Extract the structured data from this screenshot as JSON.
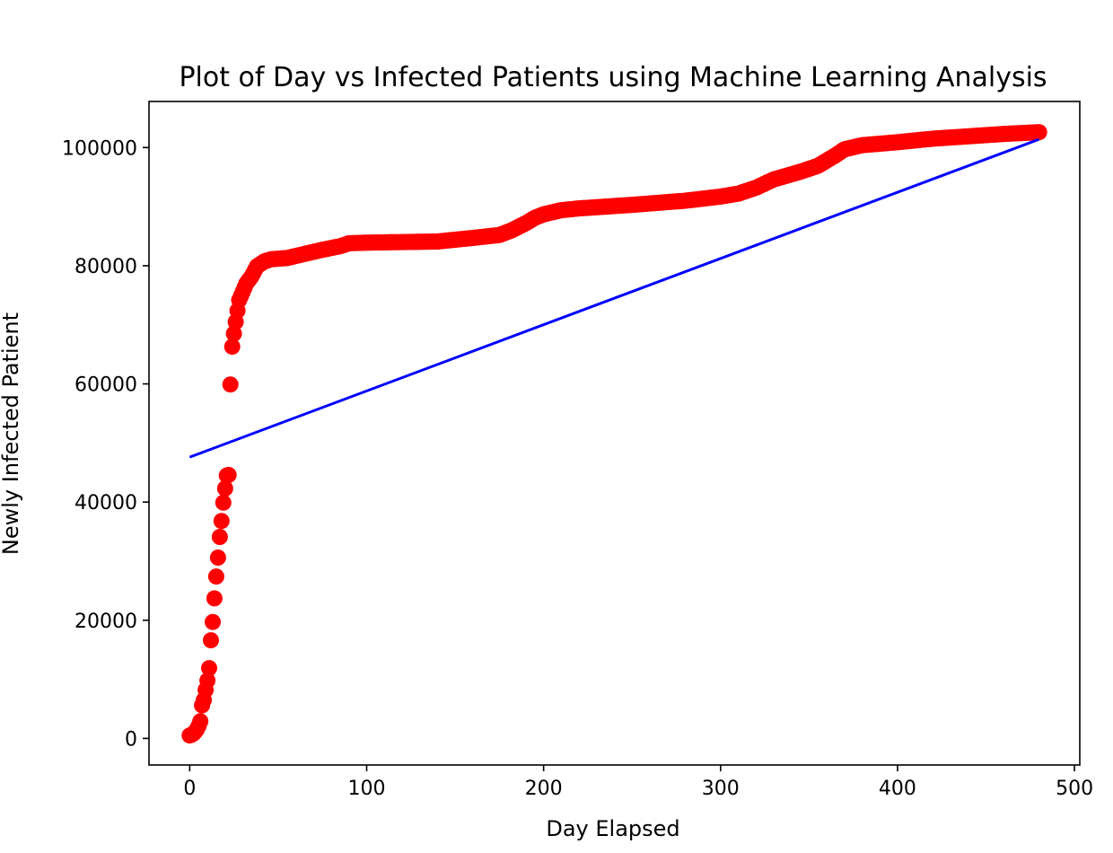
{
  "chart_data": {
    "type": "scatter",
    "title": "Plot of Day vs Infected Patients using Machine Learning Analysis",
    "xlabel": "Day Elapsed",
    "ylabel": "Newly Infected Patient",
    "xlim": [
      -23,
      503
    ],
    "ylim": [
      -4500,
      107800
    ],
    "xticks": [
      0,
      100,
      200,
      300,
      400,
      500
    ],
    "yticks": [
      0,
      20000,
      40000,
      60000,
      80000,
      100000
    ],
    "grid": false,
    "colors": {
      "points": "#ff0000",
      "fit_line": "#0000ff"
    },
    "series": [
      {
        "kind": "scatter",
        "color": "#ff0000",
        "anchors": [
          [
            0,
            500
          ],
          [
            1,
            600
          ],
          [
            2,
            800
          ],
          [
            3,
            1100
          ],
          [
            4,
            1500
          ],
          [
            5,
            2100
          ],
          [
            6,
            2900
          ],
          [
            7,
            5600
          ],
          [
            8,
            6500
          ],
          [
            9,
            8200
          ],
          [
            10,
            9800
          ],
          [
            11,
            11900
          ],
          [
            12,
            16600
          ],
          [
            13,
            19700
          ],
          [
            14,
            23700
          ],
          [
            15,
            27400
          ],
          [
            16,
            30600
          ],
          [
            17,
            34100
          ],
          [
            18,
            36800
          ],
          [
            19,
            39900
          ],
          [
            20,
            42300
          ],
          [
            21,
            44500
          ],
          [
            22,
            44600
          ],
          [
            23,
            59900
          ],
          [
            24,
            66300
          ],
          [
            25,
            68500
          ],
          [
            26,
            70500
          ],
          [
            27,
            72400
          ],
          [
            28,
            74200
          ],
          [
            30,
            75600
          ],
          [
            32,
            77000
          ],
          [
            35,
            78200
          ],
          [
            38,
            79900
          ],
          [
            42,
            80700
          ],
          [
            46,
            81100
          ],
          [
            55,
            81300
          ],
          [
            65,
            82000
          ],
          [
            75,
            82700
          ],
          [
            85,
            83300
          ],
          [
            90,
            83800
          ],
          [
            100,
            83900
          ],
          [
            120,
            84000
          ],
          [
            140,
            84100
          ],
          [
            160,
            84700
          ],
          [
            175,
            85200
          ],
          [
            182,
            86000
          ],
          [
            190,
            87200
          ],
          [
            195,
            88100
          ],
          [
            200,
            88700
          ],
          [
            210,
            89400
          ],
          [
            220,
            89700
          ],
          [
            250,
            90300
          ],
          [
            280,
            91000
          ],
          [
            300,
            91700
          ],
          [
            310,
            92200
          ],
          [
            320,
            93200
          ],
          [
            330,
            94600
          ],
          [
            345,
            95900
          ],
          [
            355,
            96900
          ],
          [
            365,
            98700
          ],
          [
            370,
            99700
          ],
          [
            380,
            100400
          ],
          [
            400,
            100900
          ],
          [
            420,
            101500
          ],
          [
            440,
            101900
          ],
          [
            460,
            102300
          ],
          [
            480,
            102600
          ]
        ]
      },
      {
        "kind": "line",
        "color": "#0000ff",
        "points": [
          [
            0,
            47600
          ],
          [
            480,
            101400
          ]
        ]
      }
    ]
  }
}
